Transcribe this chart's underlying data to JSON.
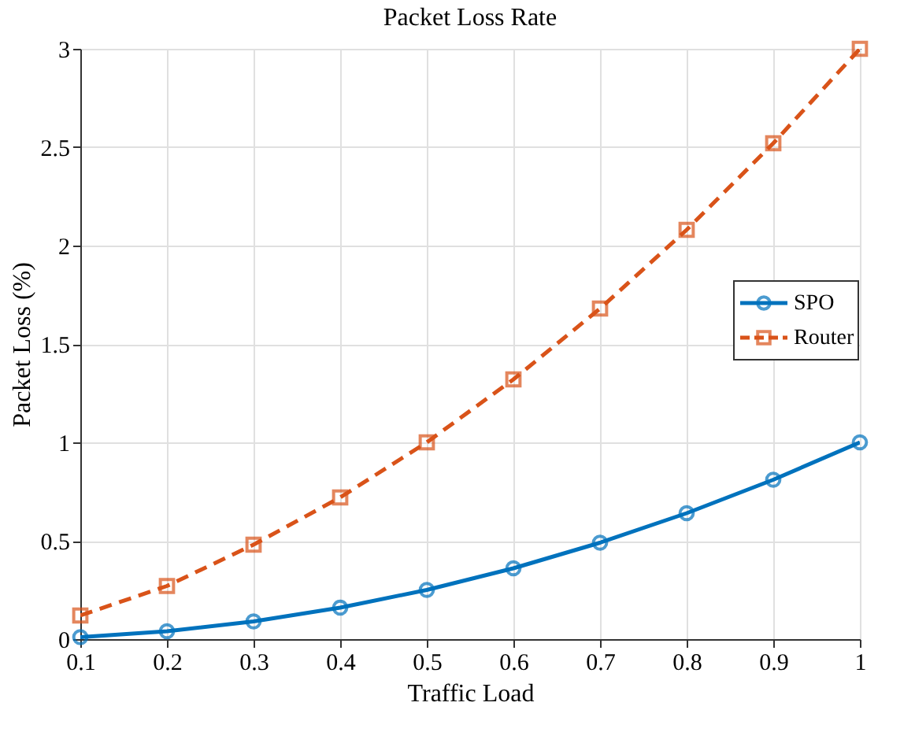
{
  "chart_data": {
    "type": "line",
    "title": "Packet Loss Rate",
    "xlabel": "Traffic Load",
    "ylabel": "Packet Loss (%)",
    "x": [
      0.1,
      0.2,
      0.3,
      0.4,
      0.5,
      0.6,
      0.7,
      0.8,
      0.9,
      1.0
    ],
    "xlim": [
      0.1,
      1.0
    ],
    "xticks": [
      0.1,
      0.2,
      0.3,
      0.4,
      0.5,
      0.6,
      0.7,
      0.8,
      0.9,
      1
    ],
    "ylim": [
      0,
      3
    ],
    "yticks": [
      0,
      0.5,
      1,
      1.5,
      2,
      2.5,
      3
    ],
    "grid": true,
    "legend": "right",
    "series": [
      {
        "name": "SPO",
        "color": "#0072bd",
        "marker": "circle",
        "line_style": "solid",
        "values": [
          0.01,
          0.04,
          0.09,
          0.16,
          0.25,
          0.36,
          0.49,
          0.64,
          0.81,
          1.0
        ]
      },
      {
        "name": "Router",
        "color": "#d95319",
        "marker": "square",
        "line_style": "dashed",
        "values": [
          0.12,
          0.27,
          0.48,
          0.72,
          1.0,
          1.32,
          1.68,
          2.08,
          2.52,
          3.0
        ]
      }
    ]
  }
}
